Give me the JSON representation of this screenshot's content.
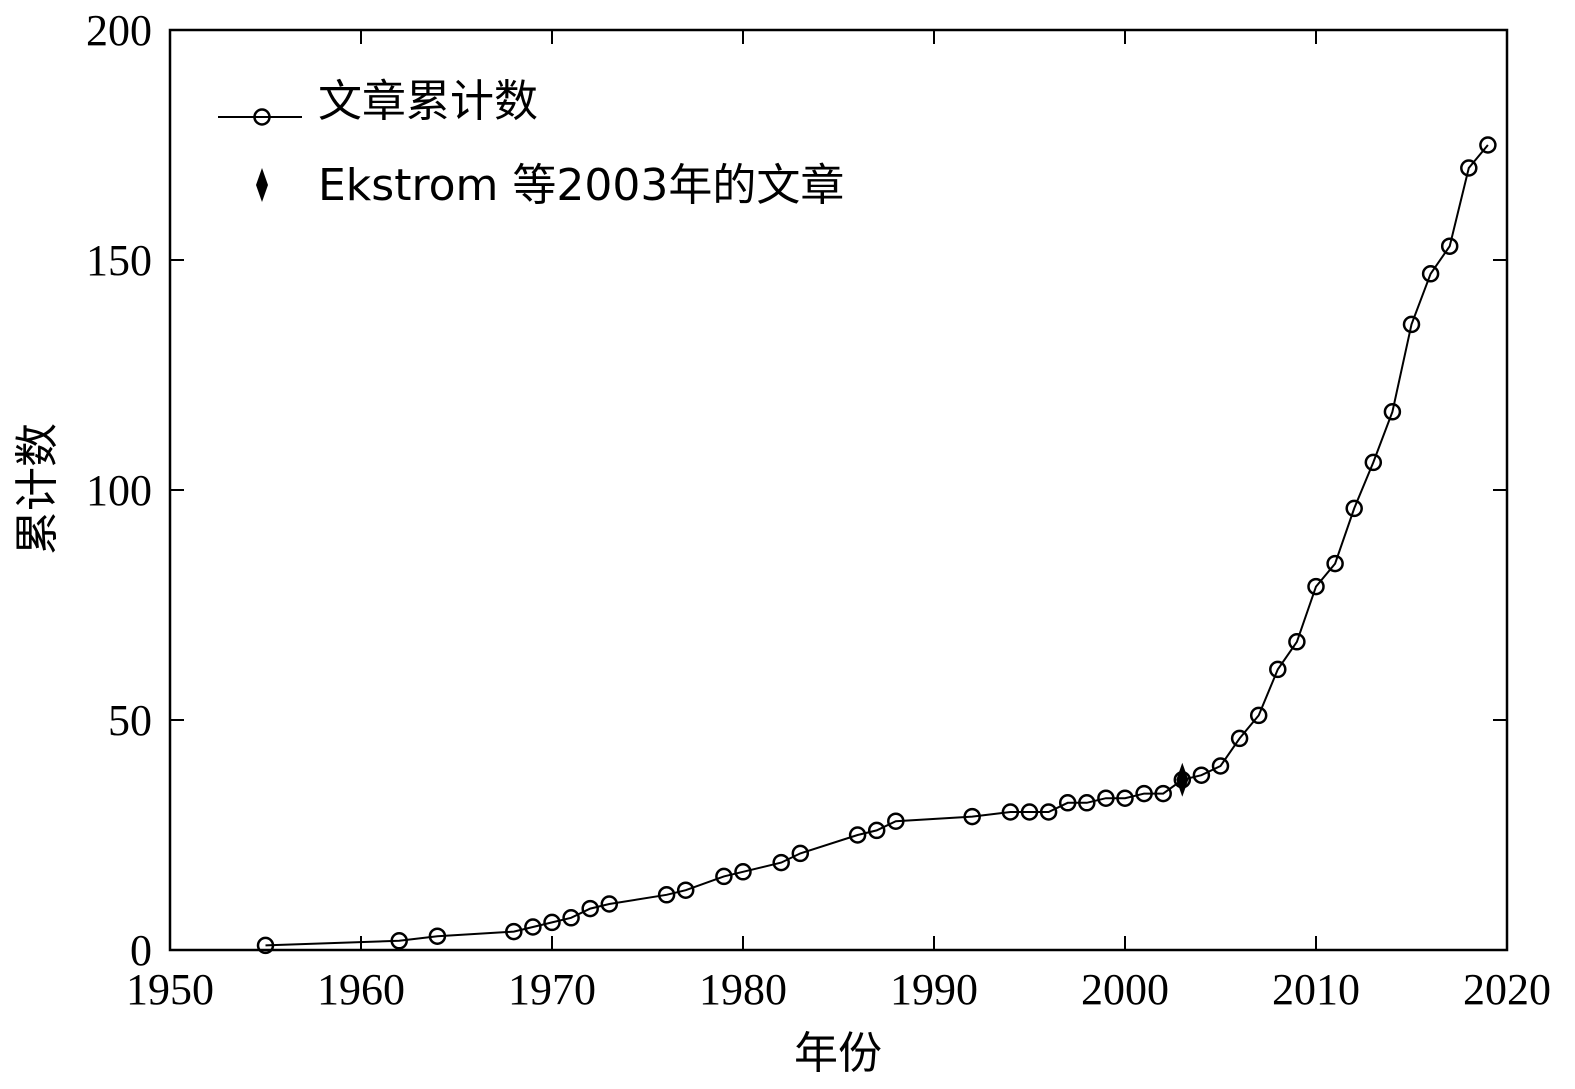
{
  "chart_data": {
    "type": "line",
    "xlabel": "年份",
    "ylabel": "累计数",
    "xlim": [
      1950,
      2020
    ],
    "ylim": [
      0,
      200
    ],
    "xticks": [
      "1950",
      "1960",
      "1970",
      "1980",
      "1990",
      "2000",
      "2010",
      "2020"
    ],
    "yticks": [
      "0",
      "50",
      "100",
      "150",
      "200"
    ],
    "grid": false,
    "legend_position": "top-left",
    "series": [
      {
        "name": "文章累计数",
        "marker": "open-circle",
        "color": "#000000",
        "x": [
          1955,
          1962,
          1964,
          1968,
          1969,
          1970,
          1971,
          1972,
          1973,
          1976,
          1977,
          1979,
          1980,
          1982,
          1983,
          1986,
          1987,
          1988,
          1992,
          1994,
          1995,
          1996,
          1997,
          1998,
          1999,
          2000,
          2001,
          2002,
          2003,
          2004,
          2005,
          2006,
          2007,
          2008,
          2009,
          2010,
          2011,
          2012,
          2013,
          2014,
          2015,
          2016,
          2017,
          2018,
          2019
        ],
        "y": [
          1,
          2,
          3,
          4,
          5,
          6,
          7,
          9,
          10,
          12,
          13,
          16,
          17,
          19,
          21,
          25,
          26,
          28,
          29,
          30,
          30,
          30,
          32,
          32,
          33,
          33,
          34,
          34,
          37,
          38,
          40,
          46,
          51,
          61,
          67,
          79,
          84,
          96,
          106,
          117,
          136,
          147,
          153,
          170,
          175
        ]
      },
      {
        "name": "Ekstrom 等2003年的文章",
        "marker": "filled-diamond",
        "color": "#000000",
        "x": [
          2003
        ],
        "y": [
          37
        ]
      }
    ]
  }
}
